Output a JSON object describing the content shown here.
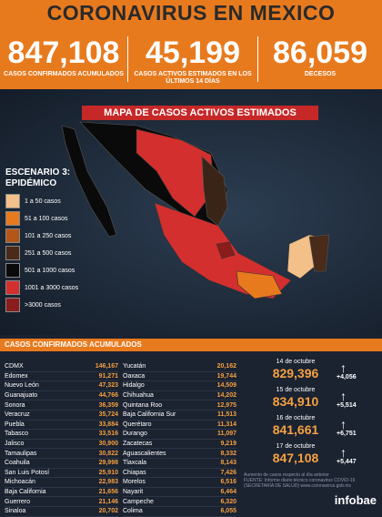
{
  "header": {
    "title": "CORONAVIRUS EN MEXICO"
  },
  "stats": [
    {
      "value": "847,108",
      "label": "CASOS CONFIRMADOS ACUMULADOS"
    },
    {
      "value": "45,199",
      "label": "CASOS ACTIVOS ESTIMADOS EN LOS ÚLTIMOS 14 DÍAS"
    },
    {
      "value": "86,059",
      "label": "DECESOS"
    }
  ],
  "map": {
    "title": "MAPA DE CASOS ACTIVOS ESTIMADOS",
    "legend_title": "ESCENARIO 3: EPIDÉMICO",
    "legend": [
      {
        "label": "1 a 50 casos",
        "color": "#f3c08a"
      },
      {
        "label": "51 a 100 casos",
        "color": "#e87a1e"
      },
      {
        "label": "101 a 250 casos",
        "color": "#b4561a"
      },
      {
        "label": "251 a 500 casos",
        "color": "#4a2a18"
      },
      {
        "label": "501 a 1000 casos",
        "color": "#0a0a0a"
      },
      {
        "label": "1001 a 3000 casos",
        "color": "#d32f2f"
      },
      {
        "label": ">3000 casos",
        "color": "#8a1c1c"
      }
    ]
  },
  "table": {
    "title": "CASOS CONFIRMADOS ACUMULADOS",
    "columns": [
      [
        [
          "CDMX",
          "146,167"
        ],
        [
          "Edomex",
          "91,271"
        ],
        [
          "Nuevo León",
          "47,323"
        ],
        [
          "Guanajuato",
          "44,766"
        ],
        [
          "Sonora",
          "36,359"
        ],
        [
          "Veracruz",
          "35,724"
        ],
        [
          "Puebla",
          "33,884"
        ],
        [
          "Tabasco",
          "33,516"
        ],
        [
          "Jalisco",
          "30,900"
        ],
        [
          "Tamaulipas",
          "30,822"
        ],
        [
          "Coahuila",
          "29,998"
        ],
        [
          "San Luis Potosí",
          "25,910"
        ],
        [
          "Michoacán",
          "22,983"
        ],
        [
          "Baja California",
          "21,656"
        ],
        [
          "Guerrero",
          "21,146"
        ],
        [
          "Sinaloa",
          "20,702"
        ]
      ],
      [
        [
          "Yucatán",
          "20,162"
        ],
        [
          "Oaxaca",
          "19,744"
        ],
        [
          "Hidalgo",
          "14,509"
        ],
        [
          "Chihuahua",
          "14,202"
        ],
        [
          "Quintana Roo",
          "12,975"
        ],
        [
          "Baja California Sur",
          "11,513"
        ],
        [
          "Querétaro",
          "11,314"
        ],
        [
          "Durango",
          "11,097"
        ],
        [
          "Zacatecas",
          "9,219"
        ],
        [
          "Aguascalientes",
          "8,332"
        ],
        [
          "Tlaxcala",
          "8,143"
        ],
        [
          "Chiapas",
          "7,426"
        ],
        [
          "Morelos",
          "6,516"
        ],
        [
          "Nayarit",
          "6,464"
        ],
        [
          "Campeche",
          "6,320"
        ],
        [
          "Colima",
          "6,055"
        ]
      ]
    ]
  },
  "daily": {
    "entries": [
      {
        "date": "14 de octubre",
        "total": "829,396",
        "increase": "+4,056"
      },
      {
        "date": "15 de octubre",
        "total": "834,910",
        "increase": "+5,514"
      },
      {
        "date": "16 de octubre",
        "total": "841,661",
        "increase": "+6,751"
      },
      {
        "date": "17 de octubre",
        "total": "847,108",
        "increase": "+5,447"
      }
    ],
    "note": "Aumento de casos respecto al día anterior"
  },
  "footer": {
    "source": "FUENTE: Informe diario técnico coronavirus COVID-19 (SECRETARÍA DE SALUD) www.coronavirus.gob.mx",
    "brand": "infobae"
  }
}
